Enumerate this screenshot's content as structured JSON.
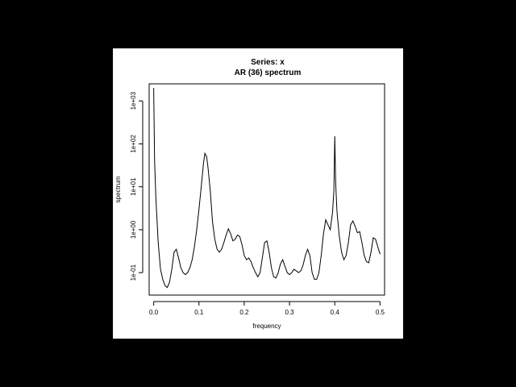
{
  "chart_data": {
    "type": "line",
    "title": "Series: x",
    "subtitle": "AR (36) spectrum",
    "xlabel": "frequency",
    "ylabel": "spectrum",
    "x_scale": "linear",
    "y_scale": "log",
    "xlim": [
      -0.01,
      0.51
    ],
    "ylim": [
      0.03,
      2500
    ],
    "x_ticks": [
      0.0,
      0.1,
      0.2,
      0.3,
      0.4,
      0.5
    ],
    "x_tick_labels": [
      "0.0",
      "0.1",
      "0.2",
      "0.3",
      "0.4",
      "0.5"
    ],
    "y_ticks": [
      0.1,
      1,
      10,
      100,
      1000
    ],
    "y_tick_labels": [
      "1e-01",
      "1e+00",
      "1e+01",
      "1e+02",
      "1e+03"
    ],
    "grid": false,
    "legend": "none",
    "line_color": "#000000",
    "series": [
      {
        "x": [
          0.0,
          0.002,
          0.005,
          0.01,
          0.015,
          0.02,
          0.025,
          0.03,
          0.035,
          0.04,
          0.045,
          0.05,
          0.055,
          0.06,
          0.065,
          0.07,
          0.075,
          0.08,
          0.085,
          0.09,
          0.095,
          0.1,
          0.105,
          0.11,
          0.113,
          0.117,
          0.12,
          0.125,
          0.13,
          0.135,
          0.14,
          0.145,
          0.15,
          0.155,
          0.16,
          0.165,
          0.17,
          0.175,
          0.18,
          0.185,
          0.19,
          0.195,
          0.2,
          0.205,
          0.21,
          0.215,
          0.22,
          0.225,
          0.23,
          0.235,
          0.24,
          0.245,
          0.25,
          0.255,
          0.26,
          0.265,
          0.27,
          0.275,
          0.28,
          0.285,
          0.29,
          0.295,
          0.3,
          0.305,
          0.31,
          0.315,
          0.32,
          0.325,
          0.33,
          0.335,
          0.34,
          0.345,
          0.35,
          0.355,
          0.36,
          0.365,
          0.37,
          0.375,
          0.38,
          0.385,
          0.39,
          0.395,
          0.398,
          0.4,
          0.402,
          0.405,
          0.41,
          0.415,
          0.42,
          0.425,
          0.43,
          0.435,
          0.44,
          0.445,
          0.45,
          0.455,
          0.46,
          0.465,
          0.47,
          0.475,
          0.48,
          0.485,
          0.49,
          0.495,
          0.5
        ],
        "y": [
          2000,
          40,
          5,
          0.5,
          0.12,
          0.07,
          0.05,
          0.045,
          0.06,
          0.12,
          0.3,
          0.35,
          0.22,
          0.13,
          0.1,
          0.09,
          0.1,
          0.13,
          0.2,
          0.4,
          1.0,
          3.0,
          10,
          35,
          60,
          50,
          28,
          8,
          1.5,
          0.6,
          0.35,
          0.3,
          0.35,
          0.5,
          0.75,
          1.05,
          0.8,
          0.55,
          0.6,
          0.75,
          0.7,
          0.45,
          0.25,
          0.2,
          0.22,
          0.18,
          0.13,
          0.1,
          0.08,
          0.1,
          0.22,
          0.5,
          0.55,
          0.3,
          0.13,
          0.08,
          0.075,
          0.1,
          0.16,
          0.2,
          0.14,
          0.1,
          0.09,
          0.1,
          0.12,
          0.11,
          0.1,
          0.11,
          0.15,
          0.25,
          0.35,
          0.25,
          0.1,
          0.07,
          0.07,
          0.1,
          0.25,
          0.8,
          1.7,
          1.3,
          1.0,
          2.5,
          8,
          150,
          12,
          2.5,
          0.7,
          0.3,
          0.2,
          0.25,
          0.5,
          1.3,
          1.6,
          1.2,
          0.85,
          0.9,
          0.5,
          0.25,
          0.18,
          0.17,
          0.3,
          0.65,
          0.6,
          0.4,
          0.27
        ]
      }
    ]
  }
}
